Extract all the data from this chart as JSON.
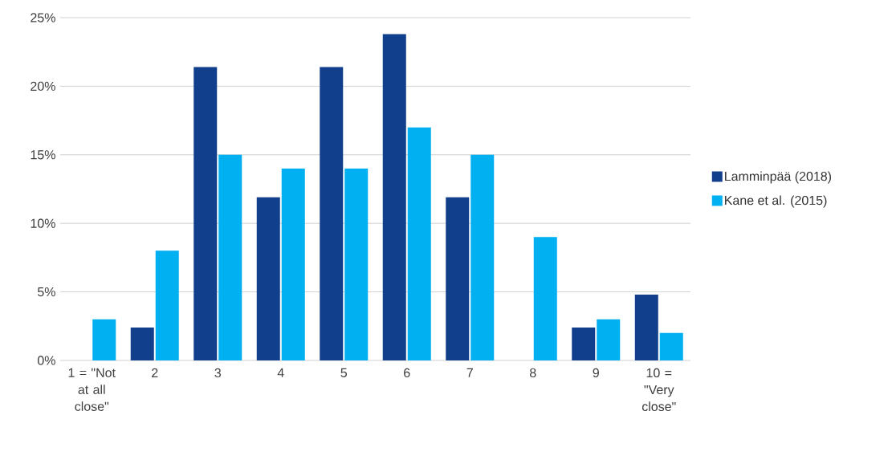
{
  "chart_data": {
    "type": "bar",
    "categories": [
      "1 = \"Not at all close\"",
      "2",
      "3",
      "4",
      "5",
      "6",
      "7",
      "8",
      "9",
      "10 = \"Very close\""
    ],
    "series": [
      {
        "name": "Lamminpää (2018)",
        "color": "#123f8c",
        "values": [
          0,
          2.4,
          21.4,
          11.9,
          21.4,
          23.8,
          11.9,
          0,
          2.4,
          4.8
        ]
      },
      {
        "name": "Kane et al. (2015)",
        "color": "#00b0f0",
        "values": [
          3,
          8,
          15,
          14,
          14,
          17,
          15,
          9,
          3,
          2
        ]
      }
    ],
    "ylim": [
      0,
      25
    ],
    "yticks": [
      {
        "value": 0,
        "label": "0%"
      },
      {
        "value": 5,
        "label": "5%"
      },
      {
        "value": 10,
        "label": "10%"
      },
      {
        "value": 15,
        "label": "15%"
      },
      {
        "value": 20,
        "label": "20%"
      },
      {
        "value": 25,
        "label": "25%"
      }
    ],
    "grid": "y",
    "legend": "right"
  }
}
